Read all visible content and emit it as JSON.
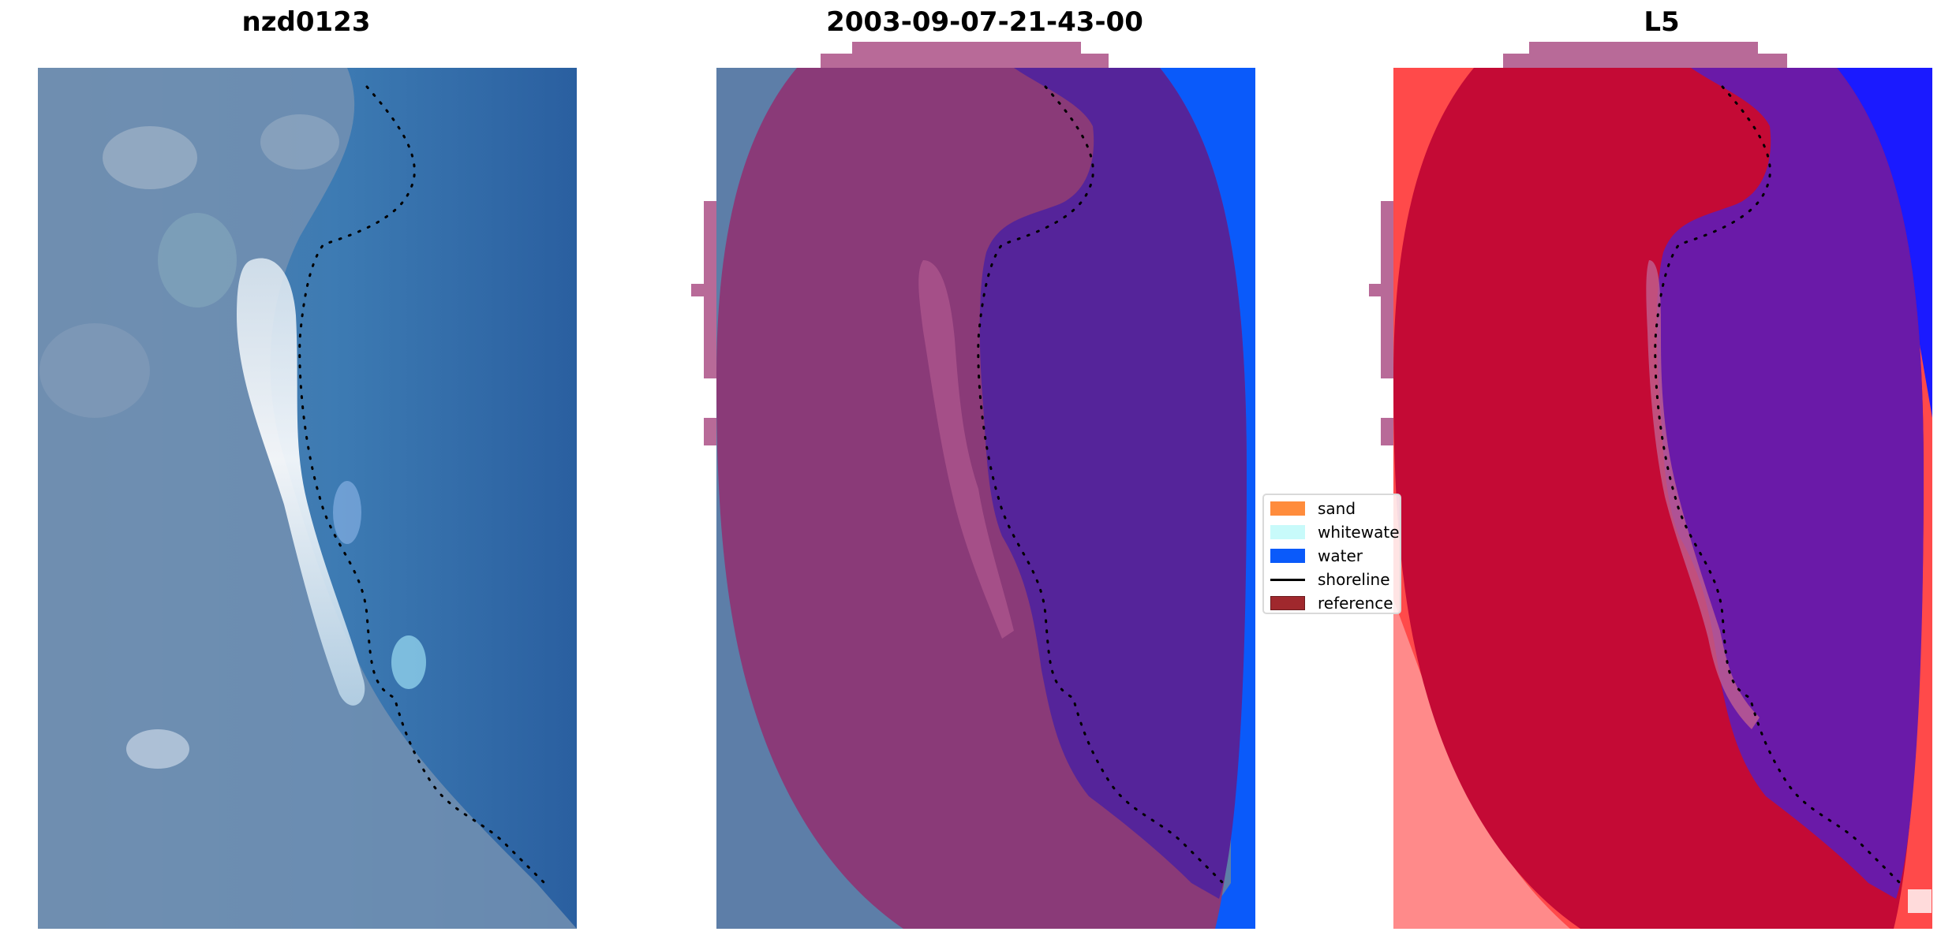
{
  "panels": {
    "left_title": "nzd0123",
    "middle_title": "2003-09-07-21-43-00",
    "right_title": "L5"
  },
  "legend": {
    "items": [
      {
        "label": "sand",
        "color": "#ff8c3c"
      },
      {
        "label": "whitewater",
        "color": "#c8fafa"
      },
      {
        "label": "water",
        "color": "#0a5afa"
      },
      {
        "label": "shoreline",
        "color": "#000000"
      },
      {
        "label": "reference",
        "color": "#a0282d"
      }
    ]
  },
  "colors": {
    "sea": "#2d6aa8",
    "land_blue": "#6e8fb5",
    "beach": "#e8eef5",
    "class_sand_overlay": "#8a3a78",
    "class_water_overlay": "#55249a",
    "class_water_bright": "#0a5afa",
    "score_land": "#c40a35",
    "score_water": "#6a1aa8",
    "score_water_bright": "#1a1aff",
    "halo": "#b86a98"
  }
}
